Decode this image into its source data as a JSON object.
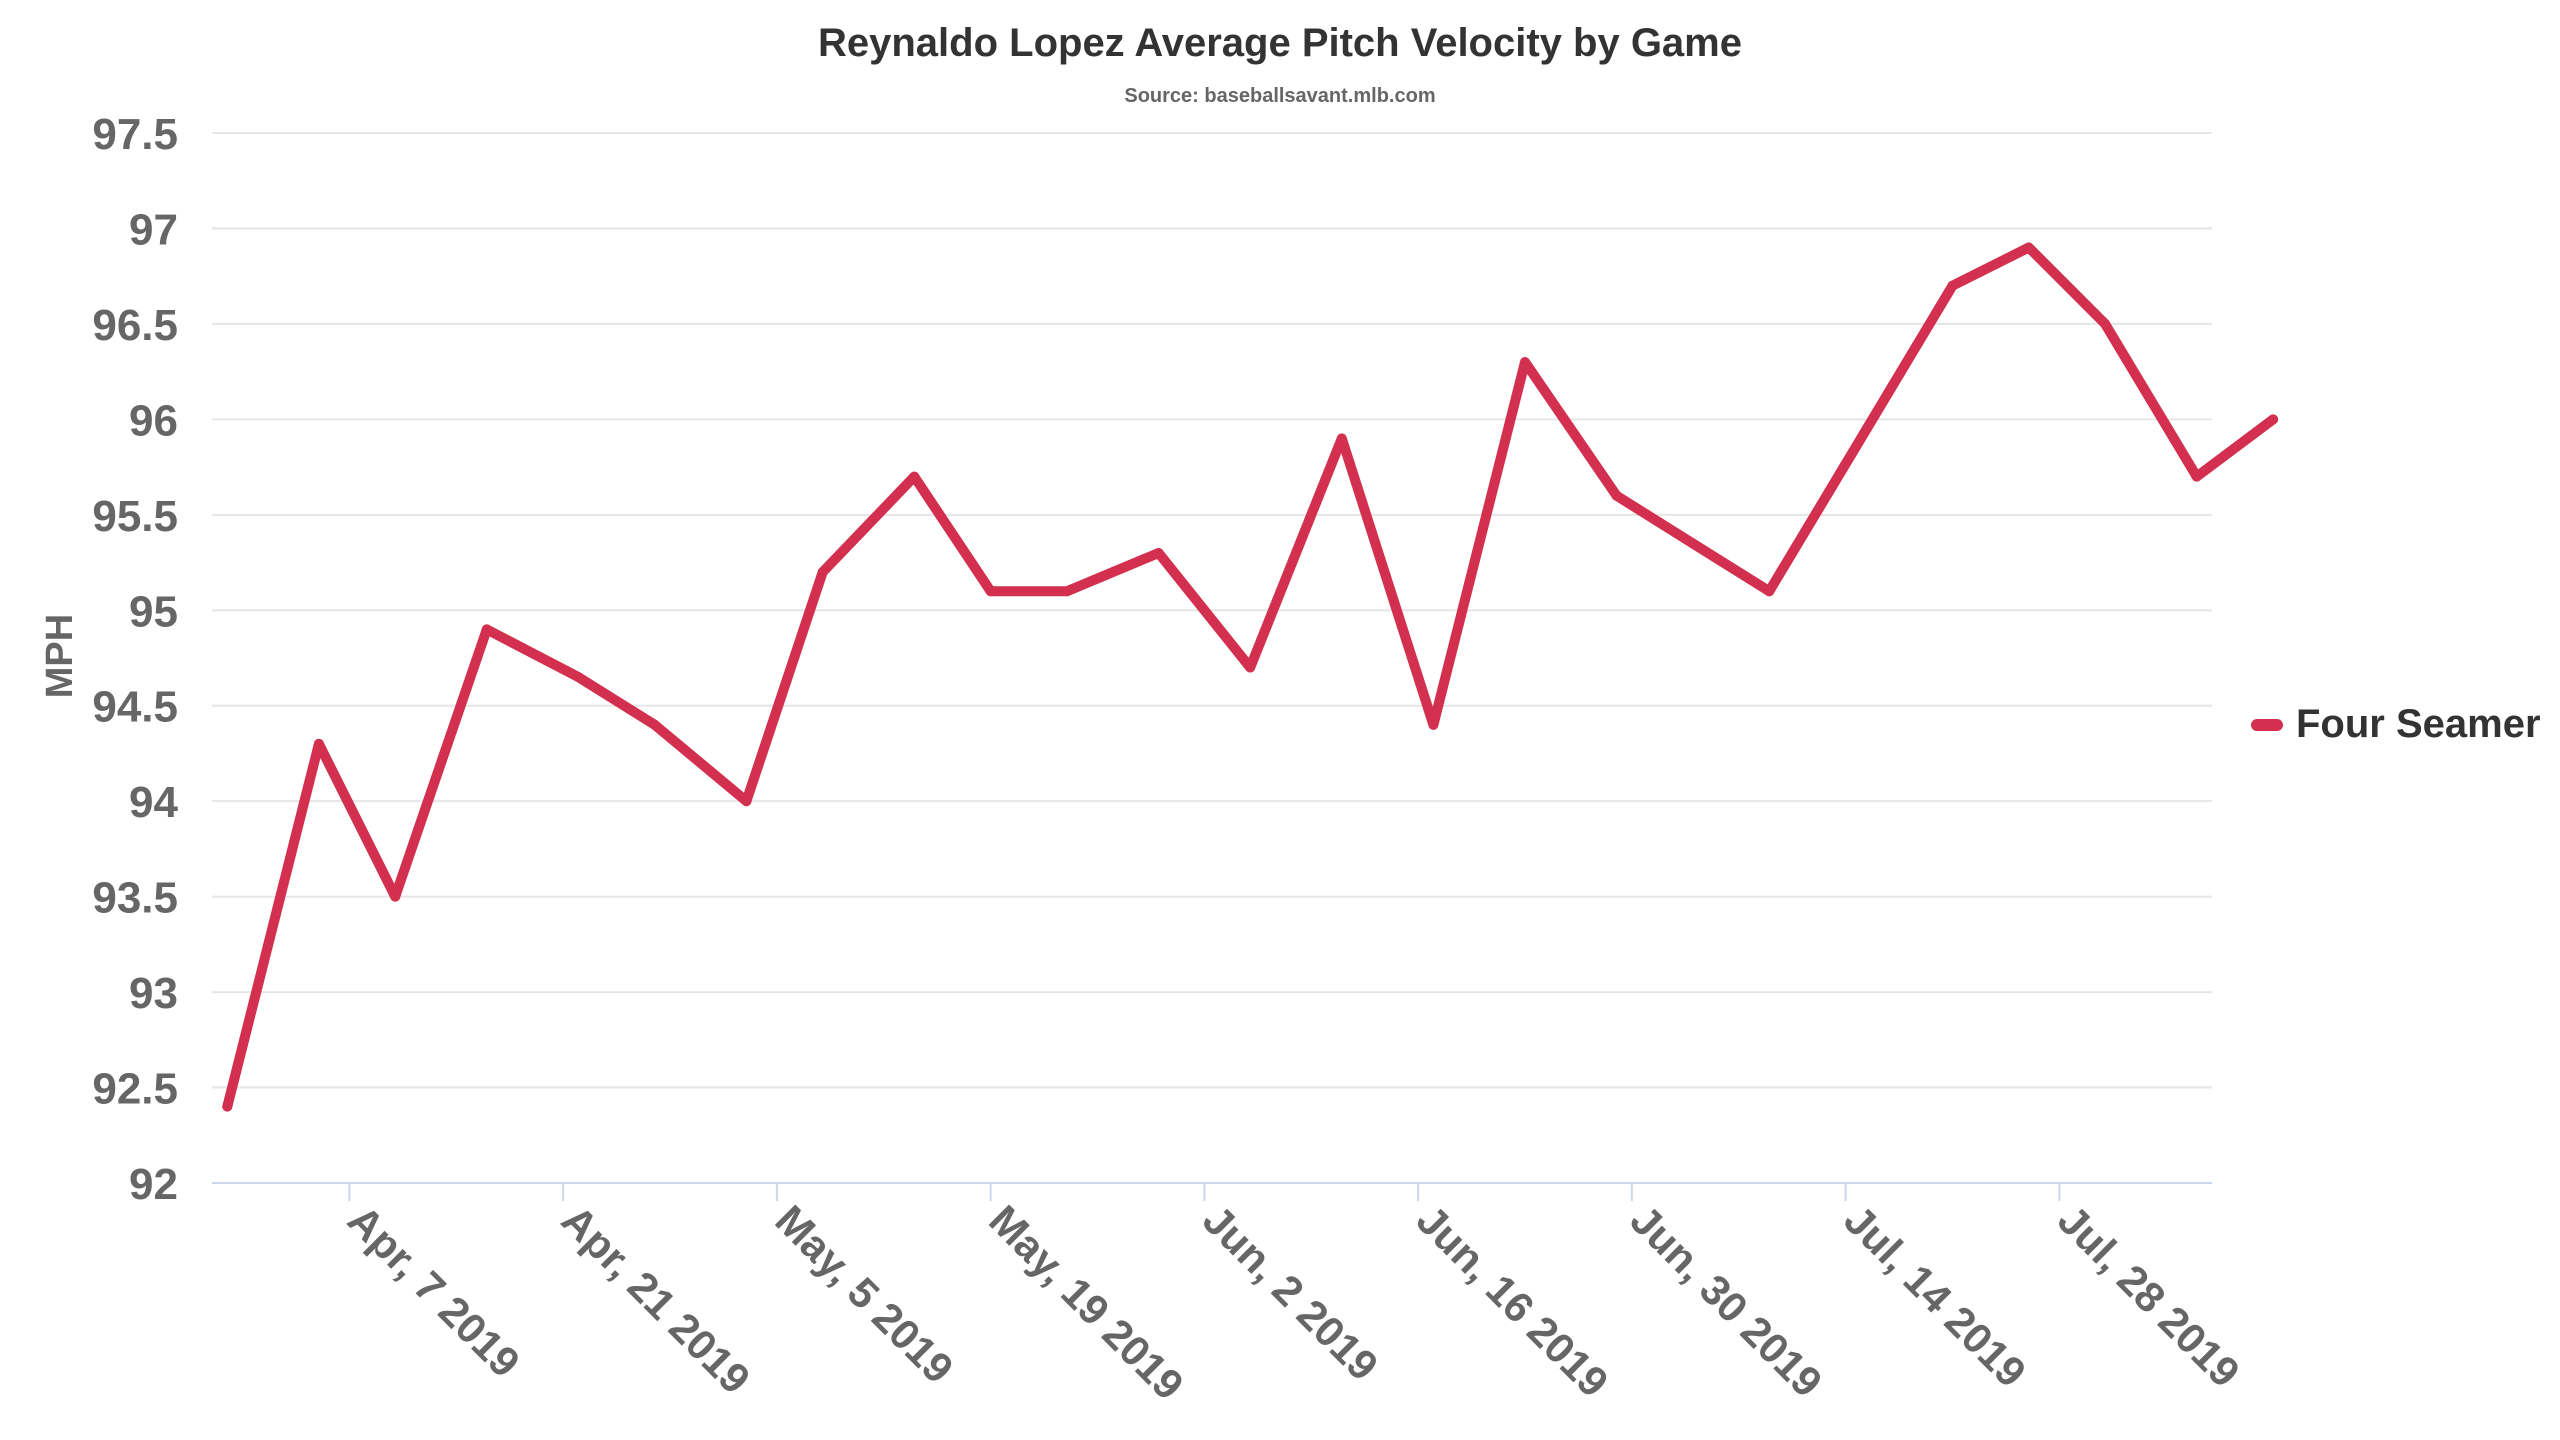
{
  "chart_data": {
    "type": "line",
    "title": "Reynaldo Lopez Average Pitch Velocity by Game",
    "subtitle": "Source: baseballsavant.mlb.com",
    "ylabel": "MPH",
    "xlabel": "",
    "ylim": [
      92,
      97.5
    ],
    "yticks": [
      "92",
      "92.5",
      "93",
      "93.5",
      "94",
      "94.5",
      "95",
      "95.5",
      "96",
      "96.5",
      "97",
      "97.5"
    ],
    "xlim": [
      "2019-03-29",
      "2019-08-07"
    ],
    "xticks": [
      {
        "date": "2019-04-07",
        "label": "Apr, 7 2019"
      },
      {
        "date": "2019-04-21",
        "label": "Apr, 21 2019"
      },
      {
        "date": "2019-05-05",
        "label": "May, 5 2019"
      },
      {
        "date": "2019-05-19",
        "label": "May, 19 2019"
      },
      {
        "date": "2019-06-02",
        "label": "Jun, 2 2019"
      },
      {
        "date": "2019-06-16",
        "label": "Jun, 16 2019"
      },
      {
        "date": "2019-06-30",
        "label": "Jun, 30 2019"
      },
      {
        "date": "2019-07-14",
        "label": "Jul, 14 2019"
      },
      {
        "date": "2019-07-28",
        "label": "Jul, 28 2019"
      }
    ],
    "grid": true,
    "legend": "right",
    "series": [
      {
        "name": "Four Seamer",
        "color": "#d3304f",
        "points": [
          {
            "x": "2019-03-30",
            "y": 92.4
          },
          {
            "x": "2019-04-05",
            "y": 94.3
          },
          {
            "x": "2019-04-10",
            "y": 93.5
          },
          {
            "x": "2019-04-16",
            "y": 94.9
          },
          {
            "x": "2019-04-22",
            "y": 94.65
          },
          {
            "x": "2019-04-27",
            "y": 94.4
          },
          {
            "x": "2019-05-03",
            "y": 94.0
          },
          {
            "x": "2019-05-08",
            "y": 95.2
          },
          {
            "x": "2019-05-14",
            "y": 95.7
          },
          {
            "x": "2019-05-19",
            "y": 95.1
          },
          {
            "x": "2019-05-24",
            "y": 95.1
          },
          {
            "x": "2019-05-30",
            "y": 95.3
          },
          {
            "x": "2019-06-05",
            "y": 94.7
          },
          {
            "x": "2019-06-11",
            "y": 95.9
          },
          {
            "x": "2019-06-17",
            "y": 94.4
          },
          {
            "x": "2019-06-23",
            "y": 96.3
          },
          {
            "x": "2019-06-29",
            "y": 95.6
          },
          {
            "x": "2019-07-04",
            "y": 95.35
          },
          {
            "x": "2019-07-09",
            "y": 95.1
          },
          {
            "x": "2019-07-15",
            "y": 95.9
          },
          {
            "x": "2019-07-21",
            "y": 96.7
          },
          {
            "x": "2019-07-26",
            "y": 96.9
          },
          {
            "x": "2019-07-31",
            "y": 96.5
          },
          {
            "x": "2019-08-06",
            "y": 95.7
          },
          {
            "x": "2019-08-11",
            "y": 96.0
          }
        ]
      }
    ]
  }
}
